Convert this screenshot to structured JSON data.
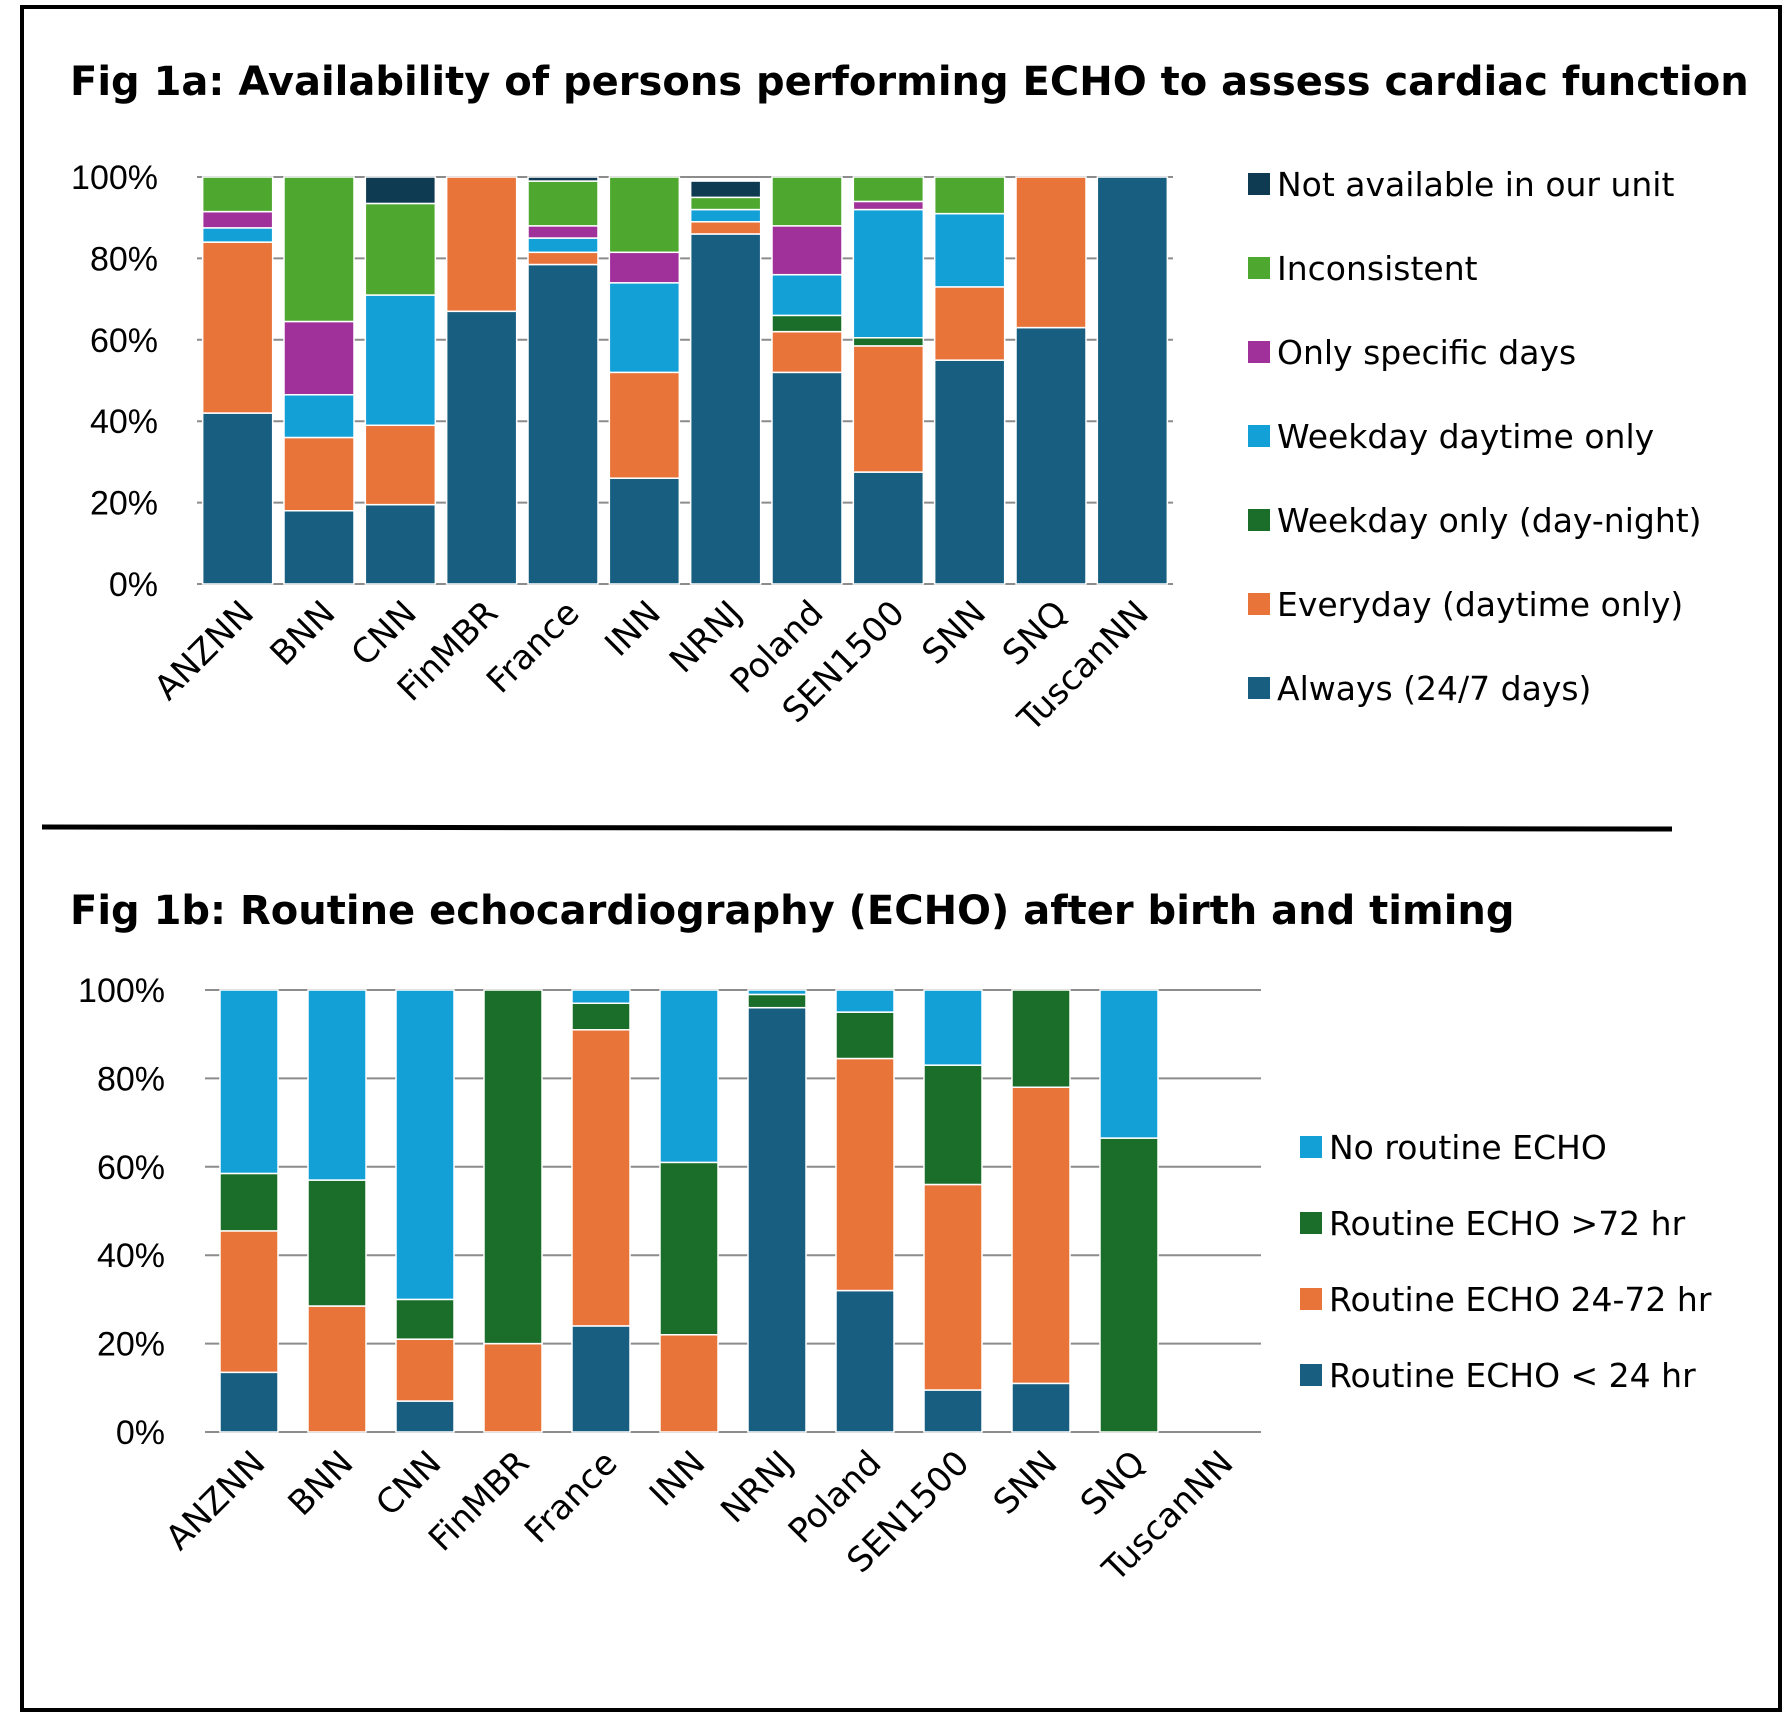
{
  "chart_data": [
    {
      "type": "bar",
      "stacked": true,
      "title": "Fig 1a: Availability of persons performing ECHO to assess cardiac function",
      "categories": [
        "ANZNN",
        "BNN",
        "CNN",
        "FinMBR",
        "France",
        "INN",
        "NRNJ",
        "Poland",
        "SEN1500",
        "SNN",
        "SNQ",
        "TuscanNN"
      ],
      "ylim": [
        0,
        100
      ],
      "yticks": [
        "0%",
        "20%",
        "40%",
        "60%",
        "80%",
        "100%"
      ],
      "legend_position": "right",
      "series": [
        {
          "name": "Always (24/7 days)",
          "color": "#175e81",
          "values": [
            42,
            18,
            19.5,
            67,
            78.5,
            26,
            86,
            52,
            27.5,
            55,
            63,
            100
          ]
        },
        {
          "name": "Everyday (daytime only)",
          "color": "#e8743a",
          "values": [
            42,
            18,
            19.5,
            33,
            3,
            26,
            3,
            10,
            31,
            18,
            37,
            0
          ]
        },
        {
          "name": "Weekday only (day-night)",
          "color": "#1b6e2a",
          "values": [
            0,
            0,
            0,
            0,
            0,
            0,
            0,
            4,
            2,
            0,
            0,
            0
          ]
        },
        {
          "name": "Weekday daytime only",
          "color": "#13a0d7",
          "values": [
            3.5,
            10.5,
            32,
            0,
            3.5,
            22,
            3,
            10,
            31.5,
            18,
            0,
            0
          ]
        },
        {
          "name": "Only specific days",
          "color": "#a0309a",
          "values": [
            4,
            18,
            0,
            0,
            3,
            7.5,
            0,
            12,
            2,
            0,
            0,
            0
          ]
        },
        {
          "name": "Inconsistent",
          "color": "#4ea72e",
          "values": [
            8.5,
            35.5,
            22.5,
            0,
            11,
            18.5,
            3,
            12,
            6,
            9,
            0,
            0
          ]
        },
        {
          "name": "Not available in our unit",
          "color": "#0f3b52",
          "values": [
            0,
            0,
            6.5,
            0,
            1,
            0,
            4,
            0,
            0,
            0,
            0,
            0
          ]
        }
      ]
    },
    {
      "type": "bar",
      "stacked": true,
      "title": "Fig 1b: Routine echocardiography (ECHO) after birth and timing",
      "categories": [
        "ANZNN",
        "BNN",
        "CNN",
        "FinMBR",
        "France",
        "INN",
        "NRNJ",
        "Poland",
        "SEN1500",
        "SNN",
        "SNQ",
        "TuscanNN"
      ],
      "ylim": [
        0,
        100
      ],
      "yticks": [
        "0%",
        "20%",
        "40%",
        "60%",
        "80%",
        "100%"
      ],
      "legend_position": "right",
      "series": [
        {
          "name": "Routine ECHO < 24 hr",
          "color": "#175e81",
          "values": [
            13.5,
            0,
            7,
            0,
            24,
            0,
            96,
            32,
            9.5,
            11,
            0,
            0
          ]
        },
        {
          "name": "Routine ECHO  24-72 hr",
          "color": "#e8743a",
          "values": [
            32,
            28.5,
            14,
            20,
            67,
            22,
            0,
            52.5,
            46.5,
            67,
            0,
            0
          ]
        },
        {
          "name": "Routine ECHO >72 hr",
          "color": "#1b6e2a",
          "values": [
            13,
            28.5,
            9,
            80,
            6,
            39,
            3,
            10.5,
            27,
            22,
            66.5,
            0
          ]
        },
        {
          "name": "No routine ECHO",
          "color": "#13a0d7",
          "values": [
            41.5,
            43,
            70,
            0,
            3,
            39,
            1,
            5,
            17,
            0,
            33.5,
            0
          ]
        }
      ]
    }
  ]
}
